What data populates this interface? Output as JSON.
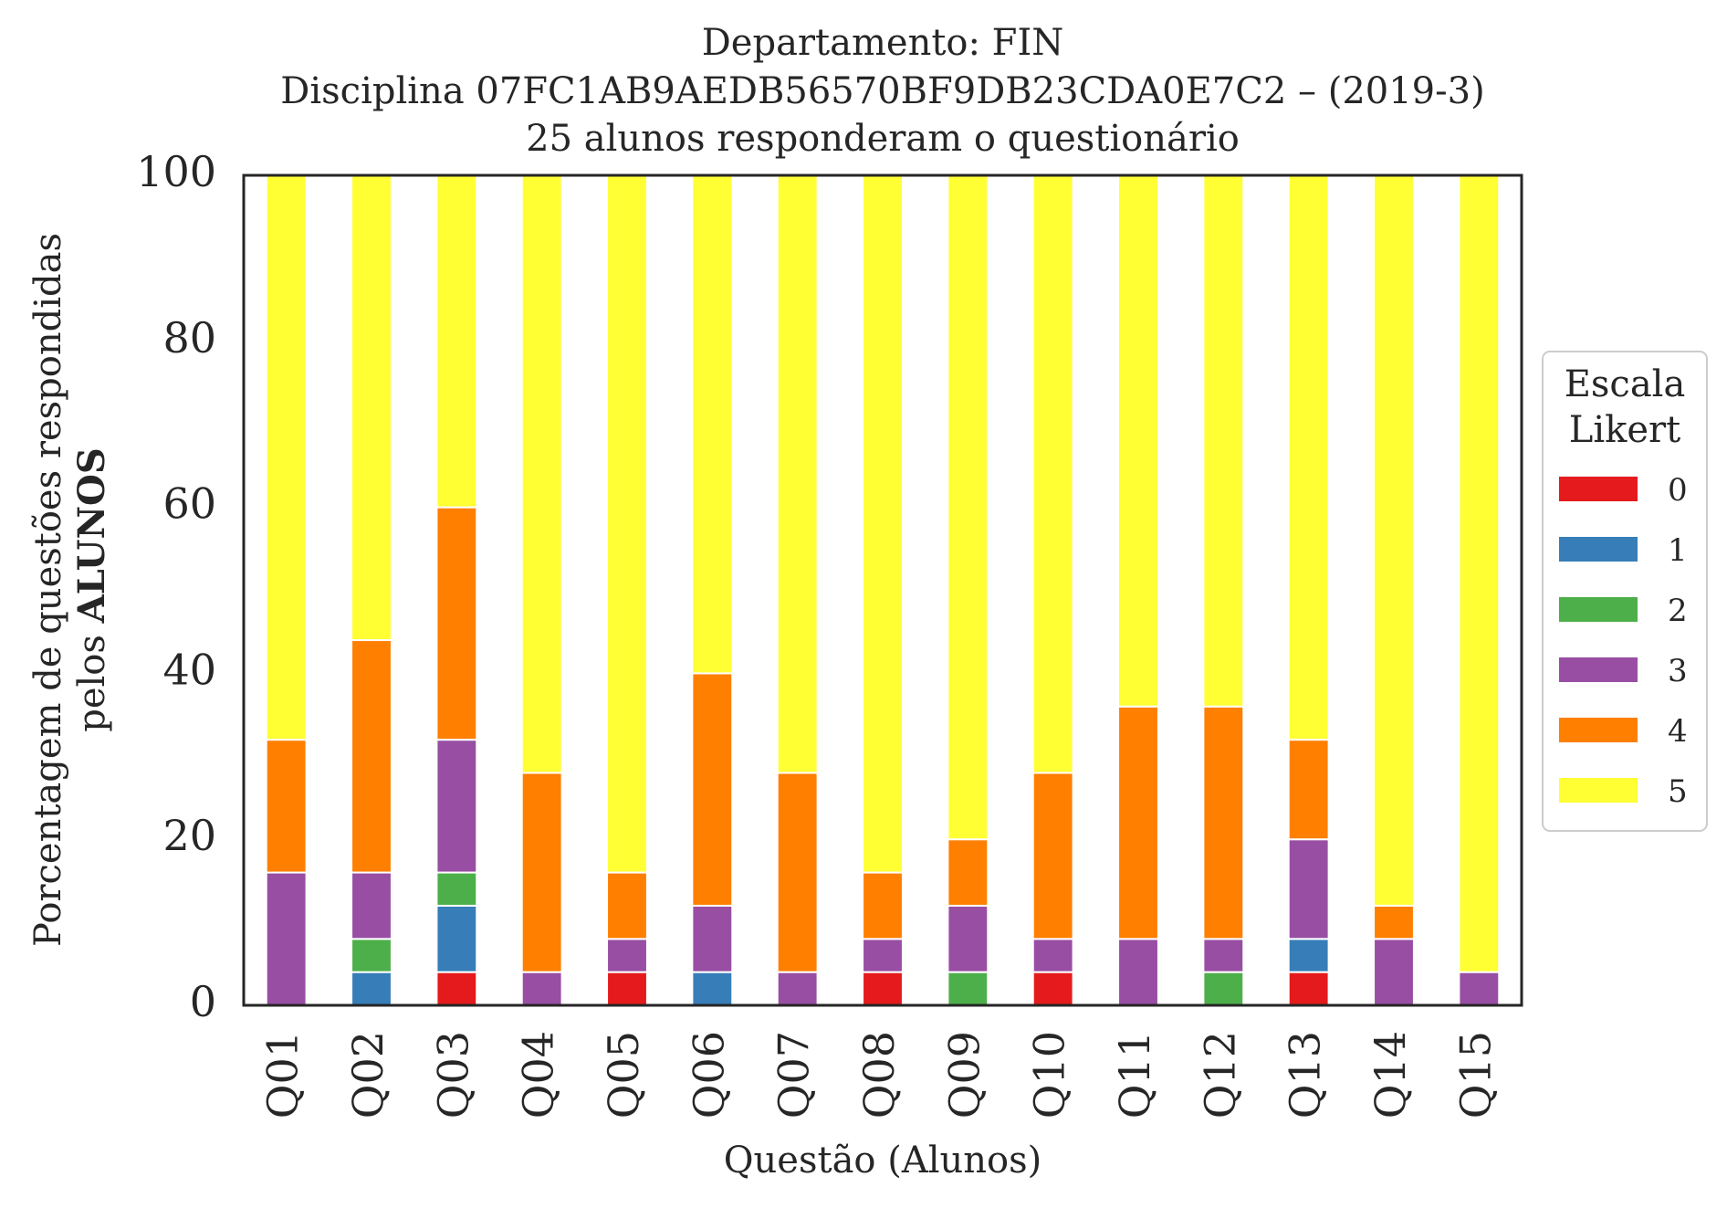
{
  "chart_data": {
    "type": "bar",
    "stacked": true,
    "title_lines": [
      "Departamento: FIN",
      "Disciplina 07FC1AB9AEDB56570BF9DB23CDA0E7C2 – (2019-3)",
      "25 alunos responderam o questionário"
    ],
    "xlabel": "Questão (Alunos)",
    "ylabel_line1": "Porcentagem de questões respondidas",
    "ylabel_line2_prefix": "pelos ",
    "ylabel_line2_bold": "ALUNOS",
    "ylim": [
      0,
      100
    ],
    "yticks": [
      "0",
      "20",
      "40",
      "60",
      "80",
      "100"
    ],
    "categories": [
      "Q01",
      "Q02",
      "Q03",
      "Q04",
      "Q05",
      "Q06",
      "Q07",
      "Q08",
      "Q09",
      "Q10",
      "Q11",
      "Q12",
      "Q13",
      "Q14",
      "Q15"
    ],
    "legend": {
      "title_line1": "Escala",
      "title_line2": "Likert",
      "placement": "center-right, outside"
    },
    "series": [
      {
        "name": "0",
        "color": "#e41a1c",
        "values": [
          0,
          0,
          4,
          0,
          4,
          0,
          0,
          4,
          0,
          4,
          0,
          0,
          4,
          0,
          0
        ]
      },
      {
        "name": "1",
        "color": "#377eb8",
        "values": [
          0,
          4,
          8,
          0,
          0,
          4,
          0,
          0,
          0,
          0,
          0,
          0,
          4,
          0,
          0
        ]
      },
      {
        "name": "2",
        "color": "#4daf4a",
        "values": [
          0,
          4,
          4,
          0,
          0,
          0,
          0,
          0,
          4,
          0,
          0,
          4,
          0,
          0,
          0
        ]
      },
      {
        "name": "3",
        "color": "#984ea3",
        "values": [
          16,
          8,
          16,
          4,
          4,
          8,
          4,
          4,
          8,
          4,
          8,
          4,
          12,
          8,
          4
        ]
      },
      {
        "name": "4",
        "color": "#ff7f00",
        "values": [
          16,
          28,
          28,
          24,
          8,
          28,
          24,
          8,
          8,
          20,
          28,
          28,
          12,
          4,
          0
        ]
      },
      {
        "name": "5",
        "color": "#ffff33",
        "values": [
          68,
          56,
          40,
          72,
          84,
          60,
          72,
          84,
          80,
          72,
          64,
          64,
          68,
          88,
          96
        ]
      }
    ]
  }
}
